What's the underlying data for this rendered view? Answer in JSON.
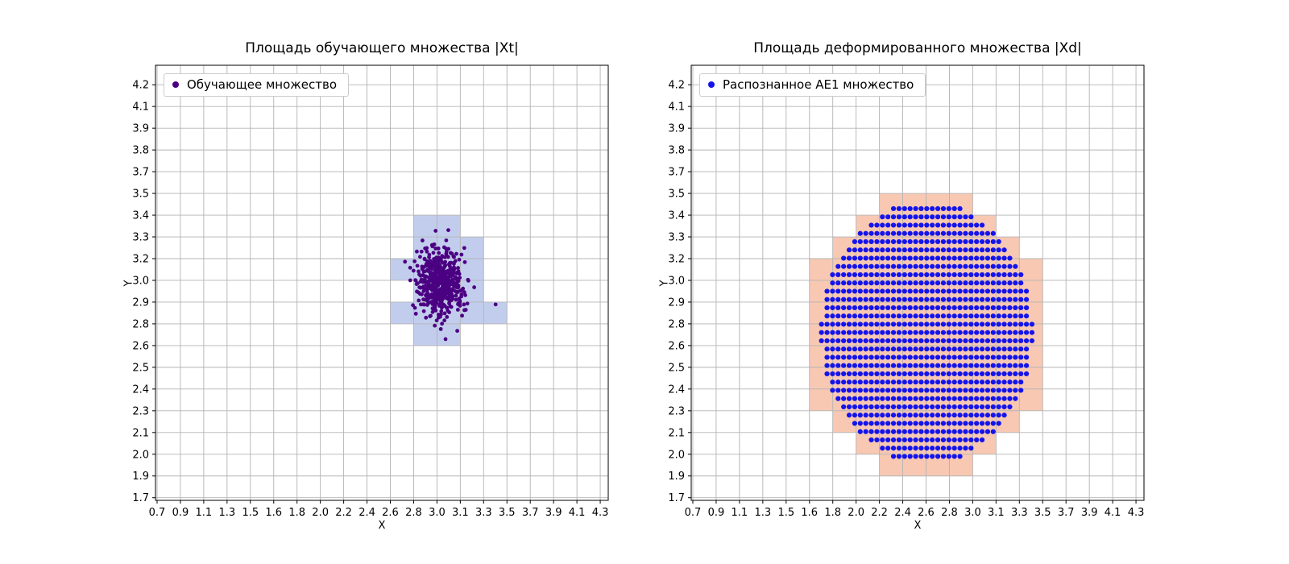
{
  "figure": {
    "background": "#ffffff",
    "grid_color": "#b3b3b3",
    "axis_color": "#000000"
  },
  "chart_data": [
    {
      "type": "scatter",
      "title": "Площадь обучающего множества |Xt|",
      "xlabel": "X",
      "ylabel": "Y",
      "legend": "Обучающее множество",
      "legend_position": "upper-left",
      "grid": true,
      "point_color": "#4b0082",
      "cell_color": "#c2cdee",
      "marker_radius": 2.4,
      "x_ticks": [
        "0.7",
        "0.9",
        "1.1",
        "1.3",
        "1.5",
        "1.6",
        "1.8",
        "2.0",
        "2.2",
        "2.4",
        "2.6",
        "2.8",
        "3.0",
        "3.1",
        "3.3",
        "3.5",
        "3.7",
        "3.9",
        "4.1",
        "4.3"
      ],
      "y_ticks": [
        "1.7",
        "1.9",
        "2.0",
        "2.1",
        "2.3",
        "2.4",
        "2.5",
        "2.6",
        "2.8",
        "2.9",
        "3.0",
        "3.2",
        "3.3",
        "3.4",
        "3.5",
        "3.7",
        "3.8",
        "3.9",
        "4.1",
        "4.2"
      ],
      "x_range": [
        0.7,
        4.3
      ],
      "y_range": [
        1.7,
        4.2
      ],
      "x_lim": [
        0.687,
        4.365
      ],
      "y_lim": [
        1.684,
        4.318
      ],
      "points": {
        "distribution": "gaussian",
        "center": [
          3.0,
          3.0
        ],
        "std": [
          0.09,
          0.1
        ],
        "count": 500,
        "seed": 20
      },
      "extra_points": [
        [
          3.45,
          2.87
        ]
      ],
      "shading_rule": "cells-containing-points"
    },
    {
      "type": "scatter",
      "title": "Площадь деформированного множества |Xd|",
      "xlabel": "X",
      "ylabel": "Y",
      "legend": "Распознанное AE1 множество",
      "legend_position": "upper-left",
      "grid": true,
      "point_color": "#1414eb",
      "cell_color": "#f8c8b3",
      "marker_radius": 3.1,
      "x_ticks": [
        "0.7",
        "0.9",
        "1.1",
        "1.3",
        "1.5",
        "1.6",
        "1.8",
        "2.0",
        "2.2",
        "2.4",
        "2.6",
        "2.8",
        "3.0",
        "3.1",
        "3.3",
        "3.5",
        "3.7",
        "3.9",
        "4.1",
        "4.3"
      ],
      "y_ticks": [
        "1.7",
        "1.9",
        "2.0",
        "2.1",
        "2.3",
        "2.4",
        "2.5",
        "2.6",
        "2.8",
        "2.9",
        "3.0",
        "3.2",
        "3.3",
        "3.4",
        "3.5",
        "3.7",
        "3.8",
        "3.9",
        "4.1",
        "4.2"
      ],
      "x_range": [
        0.7,
        4.3
      ],
      "y_range": [
        1.7,
        4.2
      ],
      "x_lim": [
        0.687,
        4.365
      ],
      "y_lim": [
        1.684,
        4.318
      ],
      "points": {
        "distribution": "ellipse-grid",
        "center": [
          2.6,
          2.7
        ],
        "radius": [
          0.86,
          0.79
        ],
        "step": [
          0.045,
          0.05
        ]
      },
      "extra_points": [],
      "shading_rule": "cells-containing-points"
    }
  ]
}
